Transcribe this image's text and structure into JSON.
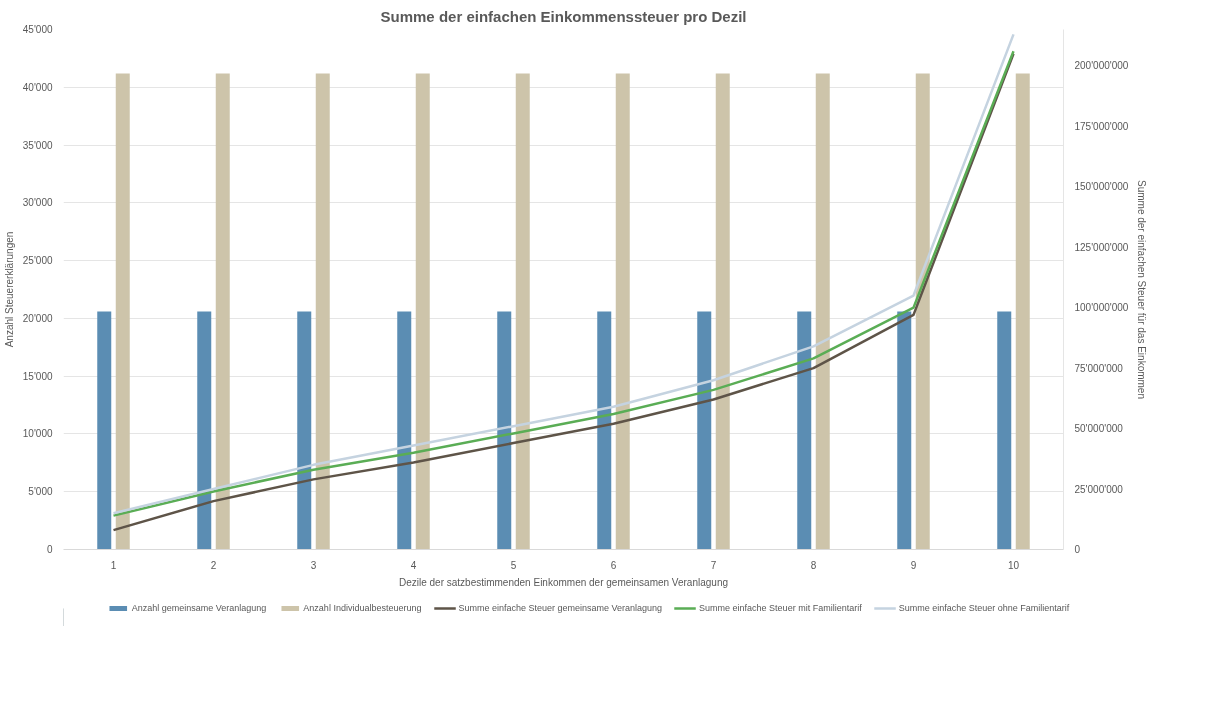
{
  "chart_data": {
    "type": "bar",
    "title": "Summe der einfachen Einkommenssteuer pro Dezil",
    "xlabel": "Dezile der satzbestimmenden Einkommen der gemeinsamen Veranlagung",
    "ylabel": "Anzahl Steuererklärungen",
    "y2label": "Summe der einfachen Steuer für das Einkommen",
    "categories": [
      "1",
      "2",
      "3",
      "4",
      "5",
      "6",
      "7",
      "8",
      "9",
      "10"
    ],
    "series": [
      {
        "name": "Anzahl gemeinsame Veranlagung",
        "color": "#5b8db3",
        "values": [
          20600,
          20600,
          20600,
          20600,
          20600,
          20600,
          20600,
          20600,
          20600,
          20600
        ]
      },
      {
        "name": "Anzahl Individualbesteuerung",
        "color": "#cdc4aa",
        "values": [
          41200,
          41200,
          41200,
          41200,
          41200,
          41200,
          41200,
          41200,
          41200,
          41200
        ]
      },
      {
        "name": "Summe einfache Steuer gemeinsame Veranlagung",
        "type": "line",
        "axis": "y2",
        "color": "#5e5448",
        "values": [
          8000000,
          20000000,
          29000000,
          36000000,
          44000000,
          52000000,
          62000000,
          75000000,
          97000000,
          205000000
        ]
      },
      {
        "name": "Summe einfache Steuer mit Familientarif",
        "type": "line",
        "axis": "y2",
        "color": "#5aad55",
        "values": [
          14000000,
          24000000,
          33000000,
          40000000,
          48000000,
          56000000,
          66000000,
          79000000,
          100000000,
          206000000
        ]
      },
      {
        "name": "Summe einfache Steuer ohne Familientarif",
        "type": "line",
        "axis": "y2",
        "color": "#c5d3e0",
        "values": [
          15000000,
          25000000,
          35000000,
          43000000,
          51000000,
          59000000,
          70000000,
          84000000,
          105000000,
          213000000
        ]
      }
    ],
    "ylim": [
      0,
      45000
    ],
    "yticks": [
      0,
      {
        "value": 5000,
        "label": "5'000"
      },
      {
        "value": 10000,
        "label": "10'000"
      },
      {
        "value": 15000,
        "label": "15'000"
      },
      {
        "value": 20000,
        "label": "20'000"
      },
      {
        "value": 25000,
        "label": "25'000"
      },
      {
        "value": 30000,
        "label": "30'000"
      },
      {
        "value": 35000,
        "label": "35'000"
      },
      {
        "value": 40000,
        "label": "40'000"
      },
      {
        "value": 45000,
        "label": "45'000"
      }
    ],
    "y2lim": [
      0,
      215000000
    ],
    "y2ticks": [
      0,
      {
        "value": 25000000,
        "label": "25'000'000"
      },
      {
        "value": 50000000,
        "label": "50'000'000"
      },
      {
        "value": 75000000,
        "label": "75'000'000"
      },
      {
        "value": 100000000,
        "label": "100'000'000"
      },
      {
        "value": 125000000,
        "label": "125'000'000"
      },
      {
        "value": 150000000,
        "label": "150'000'000"
      },
      {
        "value": 175000000,
        "label": "175'000'000"
      },
      {
        "value": 200000000,
        "label": "200'000'000"
      }
    ],
    "grid": "y",
    "legend": "bottom",
    "marker": "none",
    "line_style": "solid"
  }
}
